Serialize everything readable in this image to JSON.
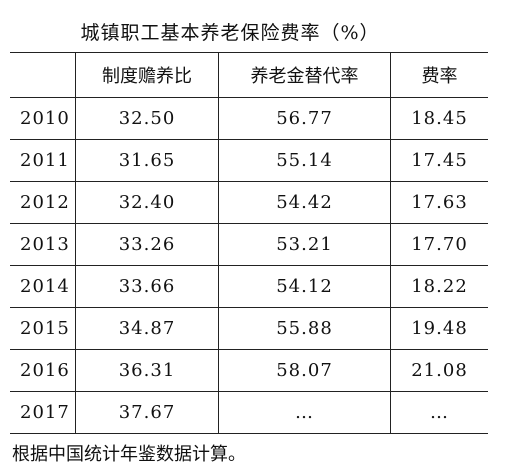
{
  "title": "城镇职工基本养老保险费率（%）",
  "table": {
    "header": [
      "制度赡养比",
      "养老金替代率",
      "费率"
    ],
    "rows": [
      [
        "2010",
        "32.50",
        "56.77",
        "18.45"
      ],
      [
        "2011",
        "31.65",
        "55.14",
        "17.45"
      ],
      [
        "2012",
        "32.40",
        "54.42",
        "17.63"
      ],
      [
        "2013",
        "33.26",
        "53.21",
        "17.70"
      ],
      [
        "2014",
        "33.66",
        "54.12",
        "18.22"
      ],
      [
        "2015",
        "34.87",
        "55.88",
        "19.48"
      ],
      [
        "2016",
        "36.31",
        "58.07",
        "21.08"
      ],
      [
        "2017",
        "37.67",
        "…",
        "…"
      ]
    ]
  },
  "note": "根据中国统计年鉴数据计算。"
}
